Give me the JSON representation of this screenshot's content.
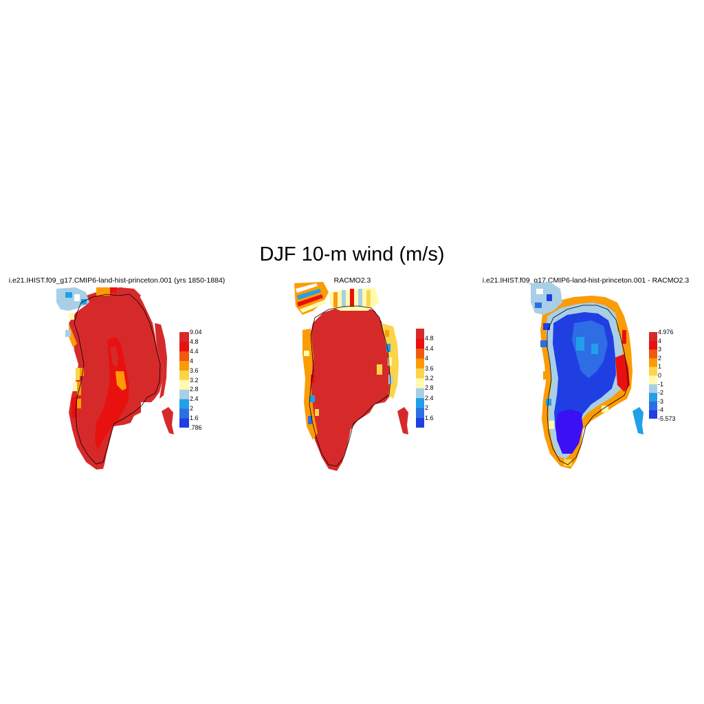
{
  "figure": {
    "title": "DJF 10-m wind (m/s)"
  },
  "colors": {
    "palette": [
      "#3b10f5",
      "#1f3fe3",
      "#2f6de4",
      "#21a0e8",
      "#a8cfe6",
      "#fffab0",
      "#fcd44a",
      "#fb9b06",
      "#f05a0e",
      "#e8110f",
      "#d62a2a"
    ]
  },
  "panels": [
    {
      "id": "model",
      "title": "i.e21.IHIST.f09_g17.CMIP6-land-hist-princeton.001 (yrs 1850-1884)",
      "colorbar": {
        "labels": [
          ".786",
          "1.6",
          "2",
          "2.4",
          "2.8",
          "3.2",
          "3.6",
          "4",
          "4.4",
          "4.8",
          "9.04"
        ]
      }
    },
    {
      "id": "obs",
      "title": "RACMO2.3",
      "colorbar": {
        "labels": [
          "1.6",
          "2",
          "2.4",
          "2.8",
          "3.2",
          "3.6",
          "4",
          "4.4",
          "4.8"
        ]
      }
    },
    {
      "id": "diff",
      "title": "i.e21.IHIST.f09_g17.CMIP6-land-hist-princeton.001 - RACMO2.3",
      "colorbar": {
        "labels": [
          "-5.573",
          "-4",
          "-3",
          "-2",
          "-1",
          "0",
          "1",
          "2",
          "3",
          "4",
          "4.976"
        ]
      }
    }
  ]
}
